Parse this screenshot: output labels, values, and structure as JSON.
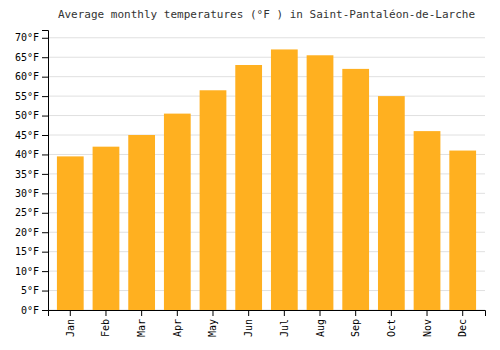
{
  "chart_data": {
    "type": "bar",
    "title": "Average monthly temperatures (°F ) in Saint-Pantaléon-de-Larche",
    "categories": [
      "Jan",
      "Feb",
      "Mar",
      "Apr",
      "May",
      "Jun",
      "Jul",
      "Aug",
      "Sep",
      "Oct",
      "Nov",
      "Dec"
    ],
    "values": [
      39.5,
      42.0,
      45.0,
      50.5,
      56.5,
      63.0,
      67.0,
      65.5,
      62.0,
      55.0,
      46.0,
      41.0
    ],
    "color": "#FFB020",
    "ylim": [
      0,
      72
    ],
    "yticks": [
      {
        "value": 0,
        "label": "0°F"
      },
      {
        "value": 5,
        "label": "5°F"
      },
      {
        "value": 10,
        "label": "10°F"
      },
      {
        "value": 15,
        "label": "15°F"
      },
      {
        "value": 20,
        "label": "20°F"
      },
      {
        "value": 25,
        "label": "25°F"
      },
      {
        "value": 30,
        "label": "30°F"
      },
      {
        "value": 35,
        "label": "35°F"
      },
      {
        "value": 40,
        "label": "40°F"
      },
      {
        "value": 45,
        "label": "45°F"
      },
      {
        "value": 50,
        "label": "50°F"
      },
      {
        "value": 55,
        "label": "55°F"
      },
      {
        "value": 60,
        "label": "60°F"
      },
      {
        "value": 65,
        "label": "65°F"
      },
      {
        "value": 70,
        "label": "70°F"
      }
    ],
    "grid": true
  }
}
